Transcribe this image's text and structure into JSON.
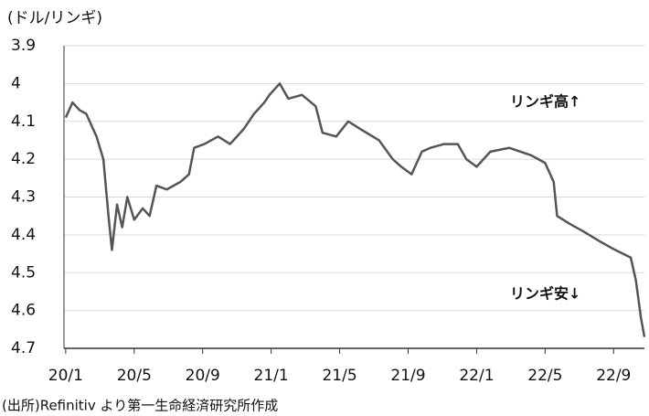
{
  "chart_data": {
    "type": "line",
    "y_axis_label": "(ドル/リンギ)",
    "annotations": [
      "リンギ高↑",
      "リンギ安↓"
    ],
    "source": "(出所)Refinitiv より第一生命経済研究所作成",
    "x": [
      0,
      0.4,
      0.8,
      1.2,
      1.8,
      2.2,
      2.5,
      2.7,
      3.0,
      3.3,
      3.6,
      4.0,
      4.5,
      4.9,
      5.3,
      5.9,
      6.7,
      7.2,
      7.5,
      8.1,
      8.9,
      9.6,
      10.4,
      11.0,
      11.6,
      11.9,
      12.5,
      13.0,
      13.8,
      14.6,
      15.0,
      15.8,
      16.5,
      17.2,
      18.3,
      19.1,
      19.6,
      20.2,
      20.8,
      21.3,
      22.1,
      22.9,
      23.4,
      24.0,
      24.8,
      25.9,
      27.2,
      28.0,
      28.5,
      28.7,
      29.4,
      30.2,
      31.3,
      32.1,
      33.0,
      33.3,
      33.6,
      33.8
    ],
    "series": [
      {
        "color": "#555555",
        "values": [
          4.09,
          4.05,
          4.07,
          4.08,
          4.14,
          4.2,
          4.35,
          4.44,
          4.32,
          4.38,
          4.3,
          4.36,
          4.33,
          4.35,
          4.27,
          4.28,
          4.26,
          4.24,
          4.17,
          4.16,
          4.14,
          4.16,
          4.12,
          4.08,
          4.05,
          4.03,
          4.0,
          4.04,
          4.03,
          4.06,
          4.13,
          4.14,
          4.1,
          4.12,
          4.15,
          4.2,
          4.22,
          4.24,
          4.18,
          4.17,
          4.16,
          4.16,
          4.2,
          4.22,
          4.18,
          4.17,
          4.19,
          4.21,
          4.26,
          4.35,
          4.37,
          4.39,
          4.42,
          4.44,
          4.46,
          4.52,
          4.62,
          4.67
        ]
      }
    ],
    "xlim": [
      -0.1,
      33.8
    ],
    "xticks": [
      {
        "value": 0,
        "label": "20/1"
      },
      {
        "value": 4,
        "label": "20/5"
      },
      {
        "value": 8,
        "label": "20/9"
      },
      {
        "value": 12,
        "label": "21/1"
      },
      {
        "value": 16,
        "label": "21/5"
      },
      {
        "value": 20,
        "label": "21/9"
      },
      {
        "value": 24,
        "label": "22/1"
      },
      {
        "value": 28,
        "label": "22/5"
      },
      {
        "value": 32,
        "label": "22/9"
      }
    ],
    "ylim": [
      3.9,
      4.7
    ],
    "yticks": [
      3.9,
      4.0,
      4.1,
      4.2,
      4.3,
      4.4,
      4.5,
      4.6,
      4.7
    ],
    "y_reversed": true,
    "grid": true
  }
}
